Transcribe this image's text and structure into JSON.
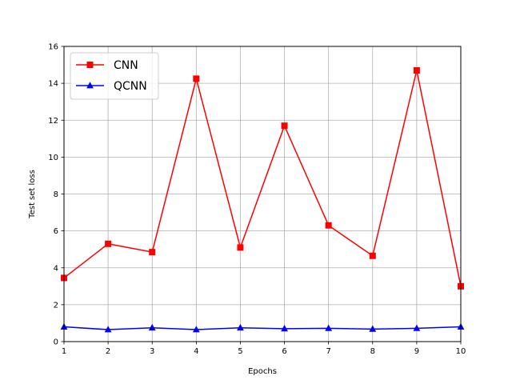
{
  "chart_data": {
    "type": "line",
    "title": "",
    "xlabel": "Epochs",
    "ylabel": "Test set loss",
    "xlim": [
      1,
      10
    ],
    "ylim": [
      0,
      16
    ],
    "x_ticks": [
      1,
      2,
      3,
      4,
      5,
      6,
      7,
      8,
      9,
      10
    ],
    "y_ticks": [
      0,
      2,
      4,
      6,
      8,
      10,
      12,
      14,
      16
    ],
    "grid": true,
    "legend_position": "top-left",
    "x": [
      1,
      2,
      3,
      4,
      5,
      6,
      7,
      8,
      9,
      10
    ],
    "series": [
      {
        "name": "CNN",
        "color": "#ff0000",
        "marker": "square",
        "values": [
          3.45,
          5.3,
          4.85,
          14.25,
          5.1,
          11.7,
          6.3,
          4.65,
          14.7,
          3.0
        ]
      },
      {
        "name": "QCNN",
        "color": "#0000ff",
        "marker": "triangle-up",
        "values": [
          0.8,
          0.65,
          0.75,
          0.65,
          0.75,
          0.7,
          0.72,
          0.68,
          0.72,
          0.8
        ]
      }
    ]
  }
}
